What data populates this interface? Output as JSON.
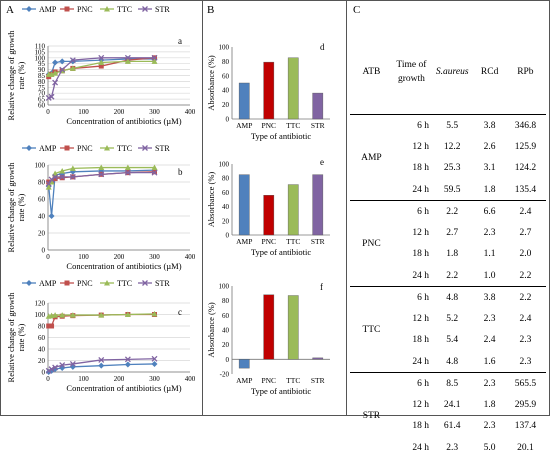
{
  "panel_labels": {
    "a": "A",
    "b": "B",
    "c": "C"
  },
  "chart_data": [
    {
      "type": "line",
      "panel": "A",
      "subplot": "a",
      "xlabel": "Concentration of antibiotics (µM)",
      "ylabel": "Relative change of growth rate (%)",
      "xlim": [
        0,
        400
      ],
      "ylim": [
        60,
        110
      ],
      "xticks": [
        "0",
        "100",
        "200",
        "300",
        "400"
      ],
      "yticks": [
        "60",
        "65",
        "70",
        "75",
        "80",
        "85",
        "90",
        "95",
        "100",
        "105",
        "110"
      ],
      "legend_position": "top",
      "series": [
        {
          "name": "AMP",
          "color": "#4F81BD",
          "marker": "diamond",
          "x": [
            2,
            10,
            20,
            40,
            70,
            150,
            225,
            300
          ],
          "y": [
            86,
            87,
            96,
            97,
            97,
            98,
            99,
            99
          ]
        },
        {
          "name": "PNC",
          "color": "#C0504D",
          "marker": "square",
          "x": [
            2,
            10,
            20,
            40,
            70,
            150,
            225,
            300
          ],
          "y": [
            84,
            86,
            88,
            89,
            91,
            93,
            98,
            100
          ]
        },
        {
          "name": "TTC",
          "color": "#9BBB59",
          "marker": "triangle",
          "x": [
            2,
            10,
            20,
            40,
            70,
            150,
            225,
            300
          ],
          "y": [
            86,
            86,
            87,
            89,
            91,
            96,
            97,
            97
          ]
        },
        {
          "name": "STR",
          "color": "#8064A2",
          "marker": "x",
          "x": [
            2,
            10,
            20,
            40,
            70,
            150,
            225,
            300
          ],
          "y": [
            66,
            67,
            79,
            90,
            98,
            100,
            100,
            100
          ]
        }
      ]
    },
    {
      "type": "line",
      "panel": "A",
      "subplot": "b",
      "xlabel": "Concentration of antibiotics (µM)",
      "ylabel": "Relative change of growth rate (%)",
      "xlim": [
        0,
        400
      ],
      "ylim": [
        0,
        100
      ],
      "xticks": [
        "0",
        "100",
        "200",
        "300",
        "400"
      ],
      "yticks": [
        "0",
        "20",
        "40",
        "60",
        "80",
        "100"
      ],
      "legend_position": "top",
      "series": [
        {
          "name": "AMP",
          "color": "#4F81BD",
          "marker": "diamond",
          "x": [
            2,
            10,
            20,
            40,
            70,
            150,
            225,
            300
          ],
          "y": [
            75,
            40,
            88,
            90,
            92,
            93,
            93,
            94
          ]
        },
        {
          "name": "PNC",
          "color": "#C0504D",
          "marker": "square",
          "x": [
            2,
            10,
            20,
            40,
            70,
            150,
            225,
            300
          ],
          "y": [
            80,
            80,
            84,
            85,
            86,
            89,
            91,
            92
          ]
        },
        {
          "name": "TTC",
          "color": "#9BBB59",
          "marker": "triangle",
          "x": [
            2,
            10,
            20,
            40,
            70,
            150,
            225,
            300
          ],
          "y": [
            74,
            80,
            90,
            93,
            96,
            97,
            97,
            97
          ]
        },
        {
          "name": "STR",
          "color": "#8064A2",
          "marker": "x",
          "x": [
            2,
            10,
            20,
            40,
            70,
            150,
            225,
            300
          ],
          "y": [
            78,
            83,
            86,
            86,
            86,
            89,
            91,
            91
          ]
        }
      ]
    },
    {
      "type": "line",
      "panel": "A",
      "subplot": "c",
      "xlabel": "Concentration of antibiotics (µM)",
      "ylabel": "Relative change of growth rate (%)",
      "xlim": [
        0,
        400
      ],
      "ylim": [
        0,
        120
      ],
      "xticks": [
        "0",
        "100",
        "200",
        "300",
        "400"
      ],
      "yticks": [
        "0",
        "20",
        "40",
        "60",
        "80",
        "100",
        "120"
      ],
      "legend_position": "top",
      "series": [
        {
          "name": "AMP",
          "color": "#4F81BD",
          "marker": "diamond",
          "x": [
            2,
            10,
            20,
            40,
            70,
            150,
            225,
            300
          ],
          "y": [
            0,
            2,
            5,
            7,
            9,
            11,
            13,
            14
          ]
        },
        {
          "name": "PNC",
          "color": "#C0504D",
          "marker": "square",
          "x": [
            2,
            10,
            20,
            40,
            70,
            150,
            225,
            300
          ],
          "y": [
            80,
            80,
            96,
            97,
            98,
            99,
            100,
            100
          ]
        },
        {
          "name": "TTC",
          "color": "#9BBB59",
          "marker": "triangle",
          "x": [
            2,
            10,
            20,
            40,
            70,
            150,
            225,
            300
          ],
          "y": [
            97,
            98,
            99,
            99,
            99,
            99,
            100,
            101
          ]
        },
        {
          "name": "STR",
          "color": "#8064A2",
          "marker": "x",
          "x": [
            2,
            10,
            20,
            40,
            70,
            150,
            225,
            300
          ],
          "y": [
            2,
            5,
            8,
            12,
            14,
            21,
            22,
            23
          ]
        }
      ]
    },
    {
      "type": "bar",
      "panel": "B",
      "subplot": "d",
      "xlabel": "Type of antibiotic",
      "ylabel": "Absorbance (%)",
      "ylim": [
        0,
        100
      ],
      "yticks": [
        "0",
        "20",
        "40",
        "60",
        "80",
        "100"
      ],
      "categories": [
        "AMP",
        "PNC",
        "TTC",
        "STR"
      ],
      "values": [
        50,
        79,
        85,
        36
      ],
      "colors": [
        "#4F81BD",
        "#C00000",
        "#9BBB59",
        "#8064A2"
      ]
    },
    {
      "type": "bar",
      "panel": "B",
      "subplot": "e",
      "xlabel": "Type of antibiotic",
      "ylabel": "Absorbance (%)",
      "ylim": [
        0,
        100
      ],
      "yticks": [
        "0",
        "20",
        "40",
        "60",
        "80",
        "100"
      ],
      "categories": [
        "AMP",
        "PNC",
        "TTC",
        "STR"
      ],
      "values": [
        85,
        56,
        71,
        85
      ],
      "colors": [
        "#4F81BD",
        "#C00000",
        "#9BBB59",
        "#8064A2"
      ]
    },
    {
      "type": "bar",
      "panel": "B",
      "subplot": "f",
      "xlabel": "Type of antibiotic",
      "ylabel": "Absorbance (%)",
      "ylim": [
        -20,
        100
      ],
      "yticks": [
        "-20",
        "0",
        "20",
        "40",
        "60",
        "80",
        "100"
      ],
      "categories": [
        "AMP",
        "PNC",
        "TTC",
        "STR"
      ],
      "values": [
        -12,
        88,
        87,
        2
      ],
      "colors": [
        "#4F81BD",
        "#C00000",
        "#9BBB59",
        "#8064A2"
      ]
    },
    {
      "type": "table",
      "panel": "C",
      "columns": [
        "ATB",
        "Time of growth",
        "S.aureus",
        "RCd",
        "RPb"
      ],
      "groups": [
        {
          "atb": "AMP",
          "rows": [
            [
              "6 h",
              "5.5",
              "3.8",
              "346.8"
            ],
            [
              "12 h",
              "12.2",
              "2.6",
              "125.9"
            ],
            [
              "18 h",
              "25.3",
              "3.1",
              "124.2"
            ],
            [
              "24 h",
              "59.5",
              "1.8",
              "135.4"
            ]
          ]
        },
        {
          "atb": "PNC",
          "rows": [
            [
              "6 h",
              "2.2",
              "6.6",
              "2.4"
            ],
            [
              "12 h",
              "2.7",
              "2.3",
              "2.7"
            ],
            [
              "18 h",
              "1.8",
              "1.1",
              "2.0"
            ],
            [
              "24 h",
              "2.2",
              "1.0",
              "2.2"
            ]
          ]
        },
        {
          "atb": "TTC",
          "rows": [
            [
              "6 h",
              "4.8",
              "3.8",
              "2.2"
            ],
            [
              "12 h",
              "5.2",
              "2.3",
              "2.4"
            ],
            [
              "18 h",
              "5.4",
              "2.4",
              "2.3"
            ],
            [
              "24 h",
              "4.8",
              "1.6",
              "2.3"
            ]
          ]
        },
        {
          "atb": "STR",
          "rows": [
            [
              "6 h",
              "8.5",
              "2.3",
              "565.5"
            ],
            [
              "12 h",
              "24.1",
              "1.8",
              "295.9"
            ],
            [
              "18 h",
              "61.4",
              "2.3",
              "137.4"
            ],
            [
              "24 h",
              "2.3",
              "5.0",
              "20.1"
            ]
          ]
        }
      ]
    }
  ]
}
